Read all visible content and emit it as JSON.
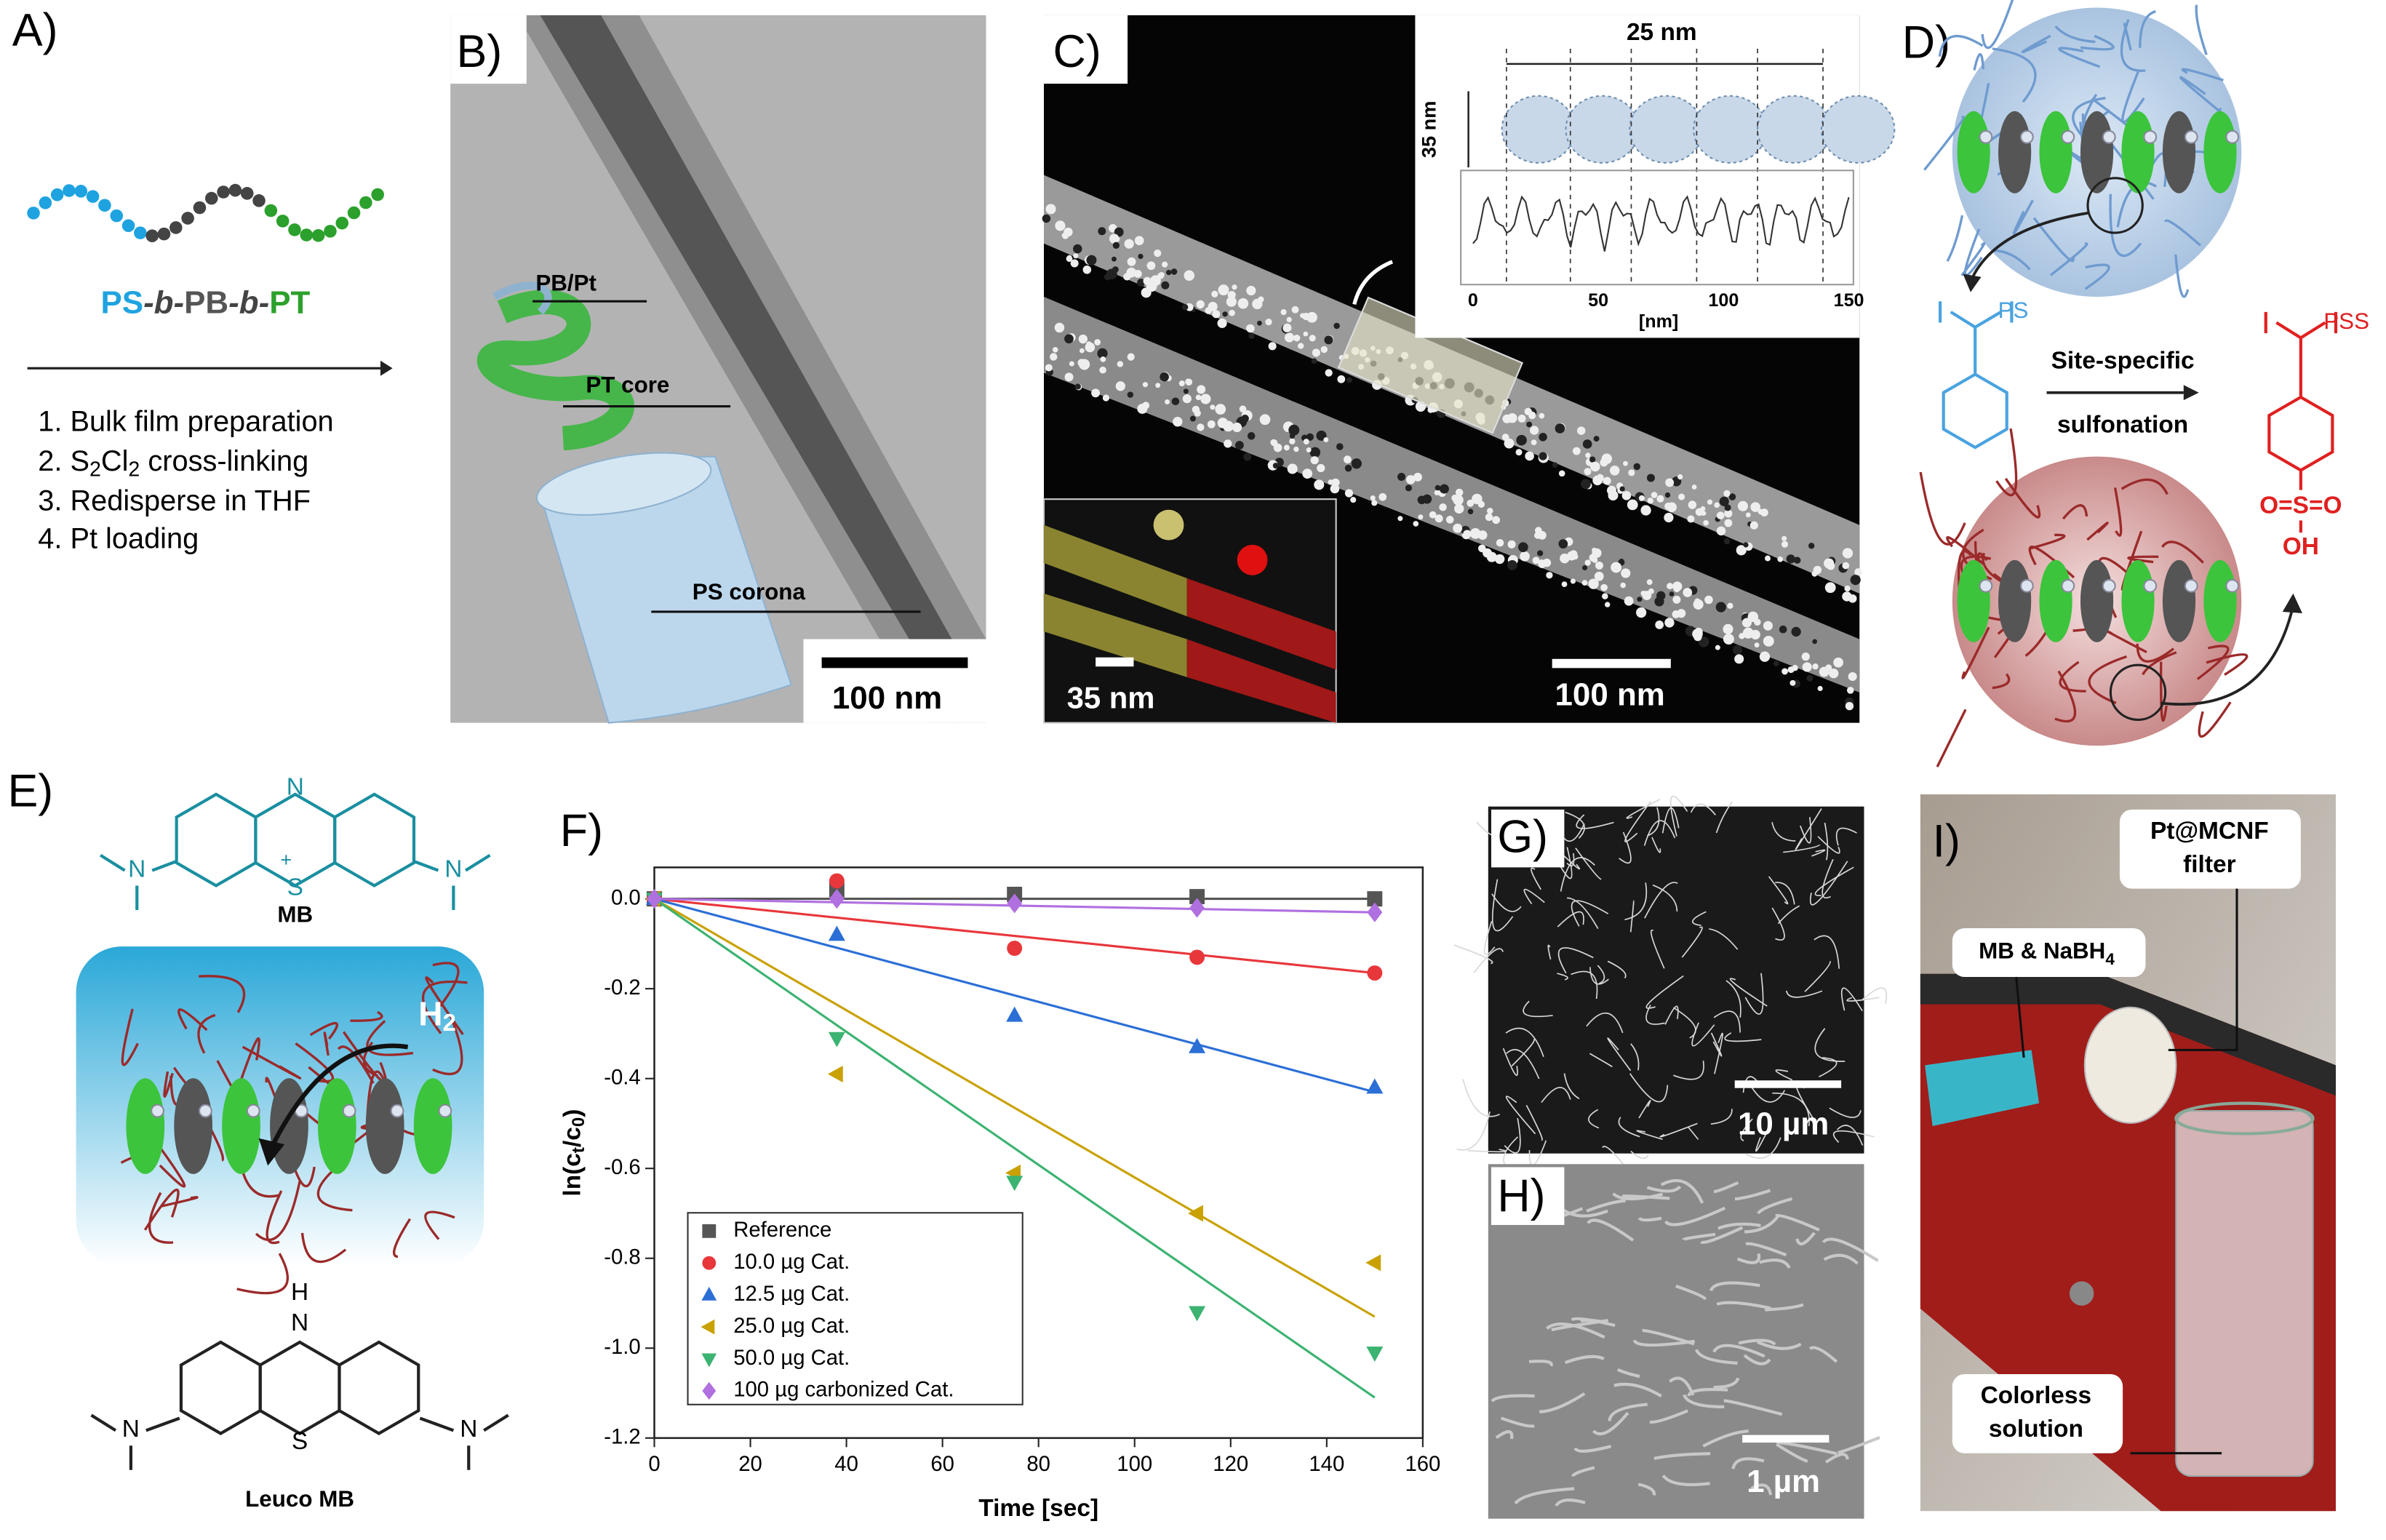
{
  "panel_a": {
    "label": "A)",
    "polymer": [
      "PS",
      "-b-",
      "PB",
      "-b-",
      "PT"
    ],
    "steps": [
      [
        "1. Bulk film preparation"
      ],
      [
        "2. S",
        "2",
        "Cl",
        "2",
        " cross-linking"
      ],
      [
        "3. Redisperse in THF"
      ],
      [
        "4. Pt loading"
      ]
    ]
  },
  "panel_b": {
    "label": "B)",
    "annotations": [
      "PB/Pt",
      "PT core",
      "PS corona"
    ],
    "scale_bar": "100 nm"
  },
  "panel_c": {
    "label": "C)",
    "profile_period": "25 nm",
    "profile_width": "35 nm",
    "profile_xticks": [
      0,
      50,
      100,
      150
    ],
    "profile_xlabel": "[nm]",
    "inset_scale_bar": "35 nm",
    "scale_bar": "100 nm"
  },
  "panel_d": {
    "label": "D)",
    "left_group": "PS",
    "arrow_top": "Site-specific",
    "arrow_bottom": "sulfonation",
    "right_group": "PSS",
    "sulfonyl": "O=S=O",
    "hydroxyl": "OH"
  },
  "panel_e": {
    "label": "E)",
    "mb_atoms": [
      "N",
      "S",
      "+",
      "N",
      "N"
    ],
    "mb_name": "MB",
    "h2": [
      "H",
      "2"
    ],
    "leuco_atoms": [
      "H",
      "N",
      "S",
      "N",
      "N"
    ],
    "leuco_name": "Leuco MB"
  },
  "panel_f": {
    "label": "F)"
  },
  "panel_g": {
    "label": "G)",
    "scale_bar": "10 µm"
  },
  "panel_h": {
    "label": "H)",
    "scale_bar": "1 µm"
  },
  "panel_i": {
    "label": "I)",
    "filter_label": [
      "Pt@MCNF",
      "filter"
    ],
    "reagent_label": [
      "MB & NaBH",
      "4"
    ],
    "product_label": [
      "Colorless",
      "solution"
    ]
  },
  "chart_data": {
    "type": "scatter",
    "xlabel": "Time [sec]",
    "ylabel": [
      "ln(c",
      "t",
      "/c",
      "0",
      ")"
    ],
    "x": [
      0,
      38,
      75,
      113,
      150
    ],
    "fit_x": [
      0,
      150
    ],
    "xlim": [
      0,
      160
    ],
    "xticks": [
      0,
      20,
      40,
      60,
      80,
      100,
      120,
      140,
      160
    ],
    "ylim": [
      -1.2,
      0.07
    ],
    "yticks": [
      {
        "value": 0,
        "label": "0.0"
      },
      -0.2,
      -0.4,
      -0.6,
      -0.8,
      {
        "value": -1,
        "label": "-1.0"
      },
      -1.2
    ],
    "legend": "lower left",
    "series": [
      {
        "name": "Reference",
        "color": "#555555",
        "marker": "square",
        "values": [
          0,
          0.02,
          0.01,
          0.005,
          0.0
        ],
        "fit": [
          0,
          0
        ]
      },
      {
        "name": "10.0 µg Cat.",
        "color": "#e8373b",
        "marker": "circle",
        "values": [
          0,
          0.04,
          -0.11,
          -0.13,
          -0.165
        ],
        "fit": [
          0,
          -0.165
        ]
      },
      {
        "name": "12.5 µg Cat.",
        "color": "#2b6fd6",
        "marker": "triangle-up",
        "values": [
          0,
          -0.08,
          -0.26,
          -0.33,
          -0.42
        ],
        "fit": [
          0,
          -0.43
        ]
      },
      {
        "name": "25.0 µg Cat.",
        "color": "#c9a100",
        "marker": "triangle-left",
        "values": [
          0,
          -0.39,
          -0.61,
          -0.7,
          -0.81
        ],
        "fit": [
          0,
          -0.93
        ]
      },
      {
        "name": "50.0 µg Cat.",
        "color": "#3cb371",
        "marker": "triangle-down",
        "values": [
          0,
          -0.31,
          -0.63,
          -0.92,
          -1.01
        ],
        "fit": [
          0,
          -1.11
        ]
      },
      {
        "name": "100 µg carbonized Cat.",
        "color": "#b070e0",
        "marker": "diamond",
        "values": [
          0,
          0.0,
          -0.01,
          -0.02,
          -0.03
        ],
        "fit": [
          0,
          -0.03
        ]
      }
    ]
  }
}
